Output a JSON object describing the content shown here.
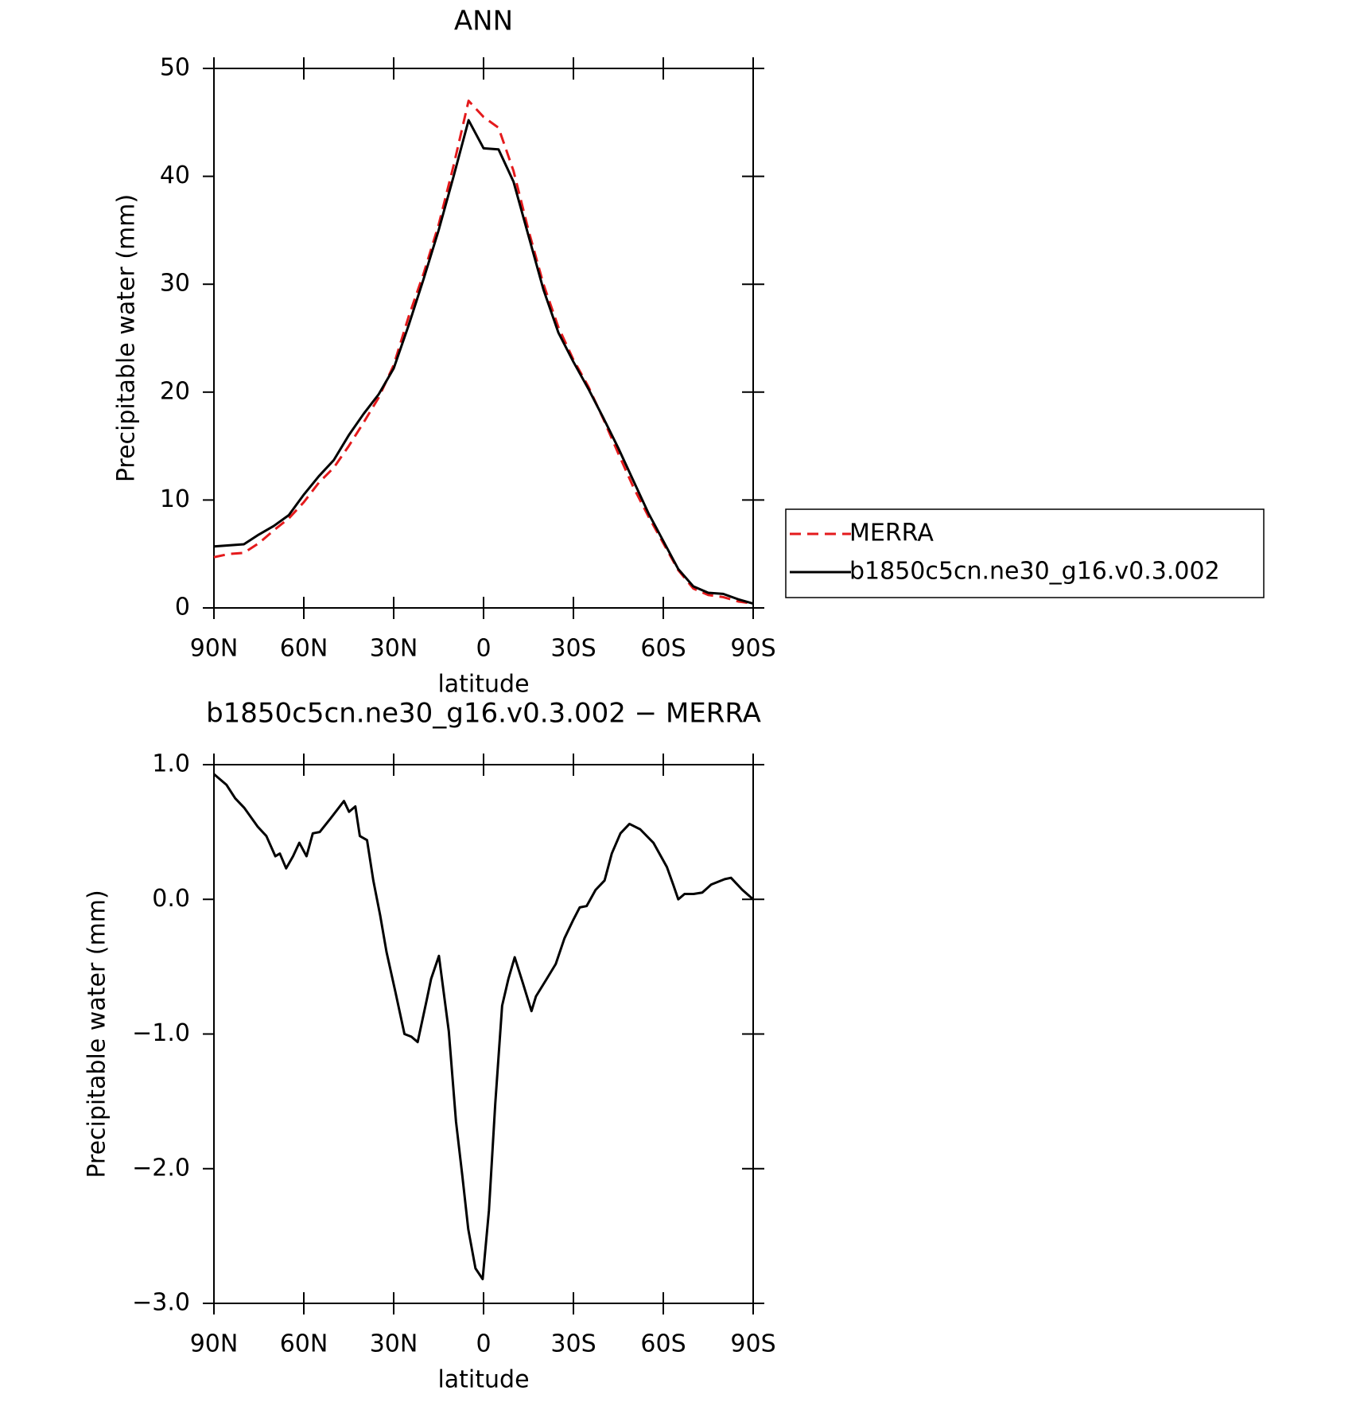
{
  "chart_data": [
    {
      "type": "line",
      "title": "ANN",
      "xlabel": "latitude",
      "ylabel": "Precipitable water (mm)",
      "x": [
        90,
        85,
        80,
        75,
        70,
        65,
        60,
        55,
        50,
        45,
        40,
        35,
        30,
        25,
        20,
        15,
        10,
        5,
        0,
        -5,
        -10,
        -15,
        -20,
        -25,
        -30,
        -35,
        -40,
        -45,
        -50,
        -55,
        -60,
        -65,
        -70,
        -75,
        -80,
        -85,
        -90
      ],
      "series": [
        {
          "name": "MERRA",
          "color": "#e41a1c",
          "dashed": true,
          "values": [
            4.7,
            5.0,
            5.1,
            6.0,
            7.2,
            8.3,
            9.8,
            11.6,
            13.0,
            15.0,
            17.2,
            19.5,
            22.5,
            27.0,
            31.0,
            35.5,
            41.0,
            47.0,
            45.5,
            44.5,
            40.5,
            35.0,
            30.0,
            26.0,
            23.0,
            20.5,
            17.5,
            14.3,
            11.2,
            8.5,
            6.0,
            3.5,
            1.8,
            1.2,
            1.0,
            0.6,
            0.4
          ]
        },
        {
          "name": "b1850c5cn.ne30_g16.v0.3.002",
          "color": "#000000",
          "dashed": false,
          "values": [
            5.7,
            5.8,
            5.9,
            6.8,
            7.6,
            8.6,
            10.5,
            12.2,
            13.7,
            16.0,
            18.0,
            19.8,
            22.2,
            26.2,
            30.5,
            35.0,
            40.0,
            45.2,
            42.6,
            42.5,
            39.5,
            34.5,
            29.5,
            25.5,
            22.8,
            20.3,
            17.6,
            14.8,
            11.8,
            8.8,
            6.2,
            3.6,
            2.0,
            1.4,
            1.3,
            0.8,
            0.4
          ]
        }
      ],
      "xlim": [
        90,
        -90
      ],
      "xticks": [
        {
          "value": 90,
          "label": "90N"
        },
        {
          "value": 60,
          "label": "60N"
        },
        {
          "value": 30,
          "label": "30N"
        },
        0,
        {
          "value": -30,
          "label": "30S"
        },
        {
          "value": -60,
          "label": "60S"
        },
        {
          "value": -90,
          "label": "90S"
        }
      ],
      "ylim": [
        0,
        50
      ],
      "yticks": [
        0,
        10,
        20,
        30,
        40,
        50
      ],
      "legend": "right"
    },
    {
      "type": "line",
      "title": "b1850c5cn.ne30_g16.v0.3.002 − MERRA",
      "xlabel": "latitude",
      "ylabel": "Precipitable water (mm)",
      "x": [
        90,
        85.8,
        82.9,
        79.9,
        75.4,
        72.5,
        69.5,
        68,
        65.9,
        63.6,
        61.5,
        59.1,
        57,
        54.7,
        51.1,
        46.6,
        44.9,
        42.8,
        41.3,
        38.9,
        36.8,
        34.5,
        32.4,
        29.4,
        26.4,
        24.1,
        22,
        19,
        17.5,
        14.9,
        11.6,
        9.2,
        7.1,
        5.1,
        2.7,
        0.3,
        -1.8,
        -3.9,
        -6.2,
        -8.3,
        -10.4,
        -13.1,
        -16,
        -17.5,
        -21.1,
        -24.1,
        -27,
        -30,
        -32.1,
        -34.4,
        -37.4,
        -40.4,
        -42.8,
        -45.7,
        -48.7,
        -52.3,
        -56.7,
        -61.2,
        -63.3,
        -65,
        -67.1,
        -70.1,
        -73,
        -76,
        -80.5,
        -82.6,
        -86.4,
        -90
      ],
      "series": [
        {
          "color": "#000000",
          "dashed": false,
          "values": [
            0.93,
            0.85,
            0.75,
            0.68,
            0.54,
            0.47,
            0.32,
            0.34,
            0.23,
            0.32,
            0.42,
            0.32,
            0.49,
            0.5,
            0.6,
            0.73,
            0.65,
            0.69,
            0.47,
            0.44,
            0.14,
            -0.12,
            -0.39,
            -0.69,
            -1.0,
            -1.02,
            -1.06,
            -0.75,
            -0.59,
            -0.42,
            -0.98,
            -1.65,
            -2.05,
            -2.45,
            -2.74,
            -2.82,
            -2.31,
            -1.52,
            -0.79,
            -0.59,
            -0.43,
            -0.62,
            -0.83,
            -0.72,
            -0.59,
            -0.48,
            -0.29,
            -0.15,
            -0.06,
            -0.05,
            0.07,
            0.14,
            0.34,
            0.49,
            0.56,
            0.52,
            0.42,
            0.24,
            0.11,
            0.0,
            0.04,
            0.04,
            0.05,
            0.11,
            0.15,
            0.16,
            0.07,
            0.0
          ]
        }
      ],
      "xlim": [
        90,
        -90
      ],
      "xticks": [
        {
          "value": 90,
          "label": "90N"
        },
        {
          "value": 60,
          "label": "60N"
        },
        {
          "value": 30,
          "label": "30N"
        },
        0,
        {
          "value": -30,
          "label": "30S"
        },
        {
          "value": -60,
          "label": "60S"
        },
        {
          "value": -90,
          "label": "90S"
        }
      ],
      "ylim": [
        -3.0,
        1.0
      ],
      "yticks": [
        {
          "value": -3.0,
          "label": "−3.0"
        },
        {
          "value": -2.0,
          "label": "−2.0"
        },
        {
          "value": -1.0,
          "label": "−1.0"
        },
        {
          "value": 0.0,
          "label": "0.0"
        },
        {
          "value": 1.0,
          "label": "1.0"
        }
      ]
    }
  ]
}
